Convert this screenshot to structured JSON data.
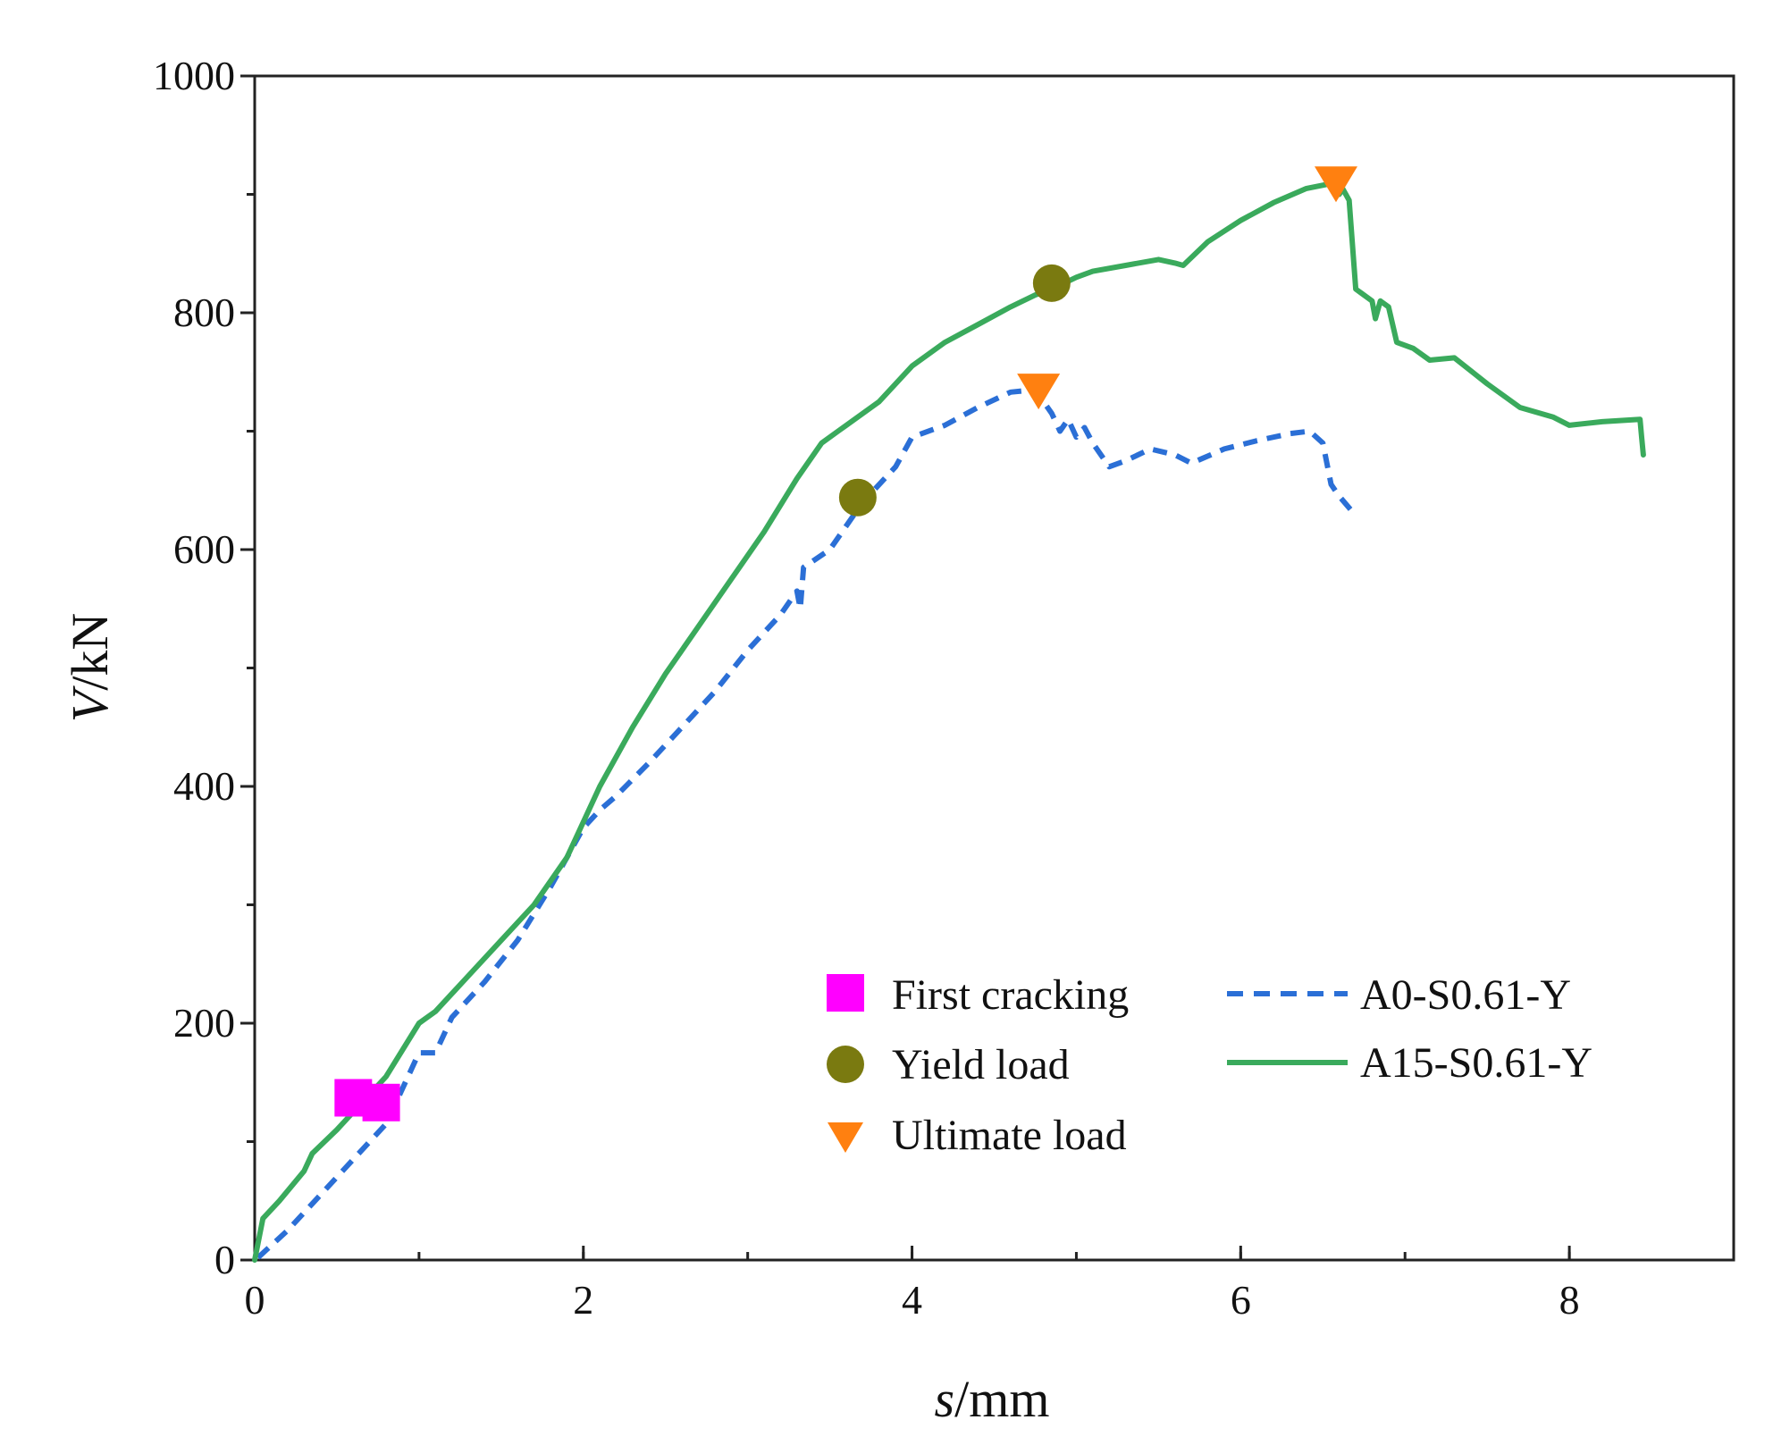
{
  "chart_data": {
    "type": "line",
    "xlabel_var": "s",
    "xlabel_unit": "/mm",
    "ylabel_var": "V",
    "ylabel_unit": "/kN",
    "xlim": [
      0,
      9
    ],
    "ylim": [
      0,
      1000
    ],
    "x_ticks": [
      0,
      2,
      4,
      6,
      8
    ],
    "x_ticks_labels": [
      "0",
      "2",
      "4",
      "6",
      "8"
    ],
    "y_ticks": [
      0,
      200,
      400,
      600,
      800,
      1000
    ],
    "y_ticks_labels": [
      "0",
      "200",
      "400",
      "600",
      "800",
      "1000"
    ],
    "x_minor_step": 1,
    "y_minor_step": 100,
    "series": [
      {
        "name": "A0-S0.61-Y",
        "color": "#2b6fd6",
        "style": "dashed",
        "points": [
          [
            0.02,
            2
          ],
          [
            0.2,
            25
          ],
          [
            0.4,
            55
          ],
          [
            0.6,
            85
          ],
          [
            0.8,
            115
          ],
          [
            0.95,
            160
          ],
          [
            1.0,
            175
          ],
          [
            1.1,
            175
          ],
          [
            1.2,
            205
          ],
          [
            1.4,
            235
          ],
          [
            1.6,
            270
          ],
          [
            1.8,
            315
          ],
          [
            2.0,
            365
          ],
          [
            2.1,
            380
          ],
          [
            2.2,
            392
          ],
          [
            2.4,
            420
          ],
          [
            2.6,
            450
          ],
          [
            2.8,
            480
          ],
          [
            3.0,
            515
          ],
          [
            3.2,
            545
          ],
          [
            3.3,
            565
          ],
          [
            3.32,
            550
          ],
          [
            3.34,
            585
          ],
          [
            3.5,
            600
          ],
          [
            3.7,
            640
          ],
          [
            3.9,
            670
          ],
          [
            4.0,
            695
          ],
          [
            4.2,
            705
          ],
          [
            4.4,
            720
          ],
          [
            4.6,
            733
          ],
          [
            4.75,
            735
          ],
          [
            4.8,
            725
          ],
          [
            4.85,
            715
          ],
          [
            4.9,
            700
          ],
          [
            4.95,
            710
          ],
          [
            5.0,
            695
          ],
          [
            5.05,
            703
          ],
          [
            5.1,
            690
          ],
          [
            5.2,
            670
          ],
          [
            5.3,
            675
          ],
          [
            5.45,
            685
          ],
          [
            5.6,
            680
          ],
          [
            5.7,
            673
          ],
          [
            5.9,
            685
          ],
          [
            6.1,
            692
          ],
          [
            6.3,
            698
          ],
          [
            6.42,
            700
          ],
          [
            6.5,
            690
          ],
          [
            6.55,
            655
          ],
          [
            6.6,
            645
          ],
          [
            6.68,
            632
          ]
        ]
      },
      {
        "name": "A15-S0.61-Y",
        "color": "#3aaa5c",
        "style": "solid",
        "points": [
          [
            0.0,
            0
          ],
          [
            0.05,
            35
          ],
          [
            0.15,
            50
          ],
          [
            0.3,
            75
          ],
          [
            0.35,
            90
          ],
          [
            0.5,
            110
          ],
          [
            0.7,
            140
          ],
          [
            0.8,
            155
          ],
          [
            1.0,
            200
          ],
          [
            1.1,
            210
          ],
          [
            1.3,
            240
          ],
          [
            1.5,
            270
          ],
          [
            1.7,
            300
          ],
          [
            1.9,
            340
          ],
          [
            2.0,
            370
          ],
          [
            2.1,
            400
          ],
          [
            2.3,
            450
          ],
          [
            2.5,
            495
          ],
          [
            2.7,
            535
          ],
          [
            2.9,
            575
          ],
          [
            3.1,
            615
          ],
          [
            3.3,
            660
          ],
          [
            3.45,
            690
          ],
          [
            3.55,
            700
          ],
          [
            3.6,
            705
          ],
          [
            3.8,
            725
          ],
          [
            4.0,
            755
          ],
          [
            4.2,
            775
          ],
          [
            4.4,
            790
          ],
          [
            4.6,
            805
          ],
          [
            4.75,
            815
          ],
          [
            4.85,
            820
          ],
          [
            5.0,
            830
          ],
          [
            5.1,
            835
          ],
          [
            5.3,
            840
          ],
          [
            5.5,
            845
          ],
          [
            5.6,
            842
          ],
          [
            5.65,
            840
          ],
          [
            5.8,
            860
          ],
          [
            6.0,
            878
          ],
          [
            6.2,
            893
          ],
          [
            6.4,
            905
          ],
          [
            6.58,
            910
          ],
          [
            6.6,
            900
          ],
          [
            6.62,
            905
          ],
          [
            6.66,
            895
          ],
          [
            6.7,
            820
          ],
          [
            6.8,
            810
          ],
          [
            6.82,
            795
          ],
          [
            6.85,
            810
          ],
          [
            6.9,
            805
          ],
          [
            6.95,
            775
          ],
          [
            7.05,
            770
          ],
          [
            7.15,
            760
          ],
          [
            7.3,
            762
          ],
          [
            7.5,
            740
          ],
          [
            7.7,
            720
          ],
          [
            7.9,
            712
          ],
          [
            8.0,
            705
          ],
          [
            8.2,
            708
          ],
          [
            8.43,
            710
          ],
          [
            8.44,
            695
          ],
          [
            8.45,
            680
          ]
        ]
      }
    ],
    "markers": [
      {
        "series": "A15-S0.61-Y",
        "label": "First cracking",
        "x": 0.6,
        "y": 137,
        "shape": "square",
        "color": "#ff00ff"
      },
      {
        "series": "A0-S0.61-Y",
        "label": "First cracking",
        "x": 0.77,
        "y": 133,
        "shape": "square",
        "color": "#ff00ff"
      },
      {
        "series": "A0-S0.61-Y",
        "label": "Yield load",
        "x": 3.67,
        "y": 644,
        "shape": "circle",
        "color": "#7a7a10"
      },
      {
        "series": "A15-S0.61-Y",
        "label": "Yield load",
        "x": 4.85,
        "y": 825,
        "shape": "circle",
        "color": "#7a7a10"
      },
      {
        "series": "A0-S0.61-Y",
        "label": "Ultimate load",
        "x": 4.77,
        "y": 735,
        "shape": "triangle-down",
        "color": "#ff8010"
      },
      {
        "series": "A15-S0.61-Y",
        "label": "Ultimate load",
        "x": 6.58,
        "y": 910,
        "shape": "triangle-down",
        "color": "#ff8010"
      }
    ],
    "legend": {
      "position": "lower-right",
      "marker_entries": [
        {
          "label": "First cracking",
          "shape": "square",
          "color": "#ff00ff"
        },
        {
          "label": "Yield load",
          "shape": "circle",
          "color": "#7a7a10"
        },
        {
          "label": "Ultimate load",
          "shape": "triangle-down",
          "color": "#ff8010"
        }
      ],
      "line_entries": [
        {
          "label": "A0-S0.61-Y",
          "style": "dashed",
          "color": "#2b6fd6"
        },
        {
          "label": "A15-S0.61-Y",
          "style": "solid",
          "color": "#3aaa5c"
        }
      ]
    }
  }
}
